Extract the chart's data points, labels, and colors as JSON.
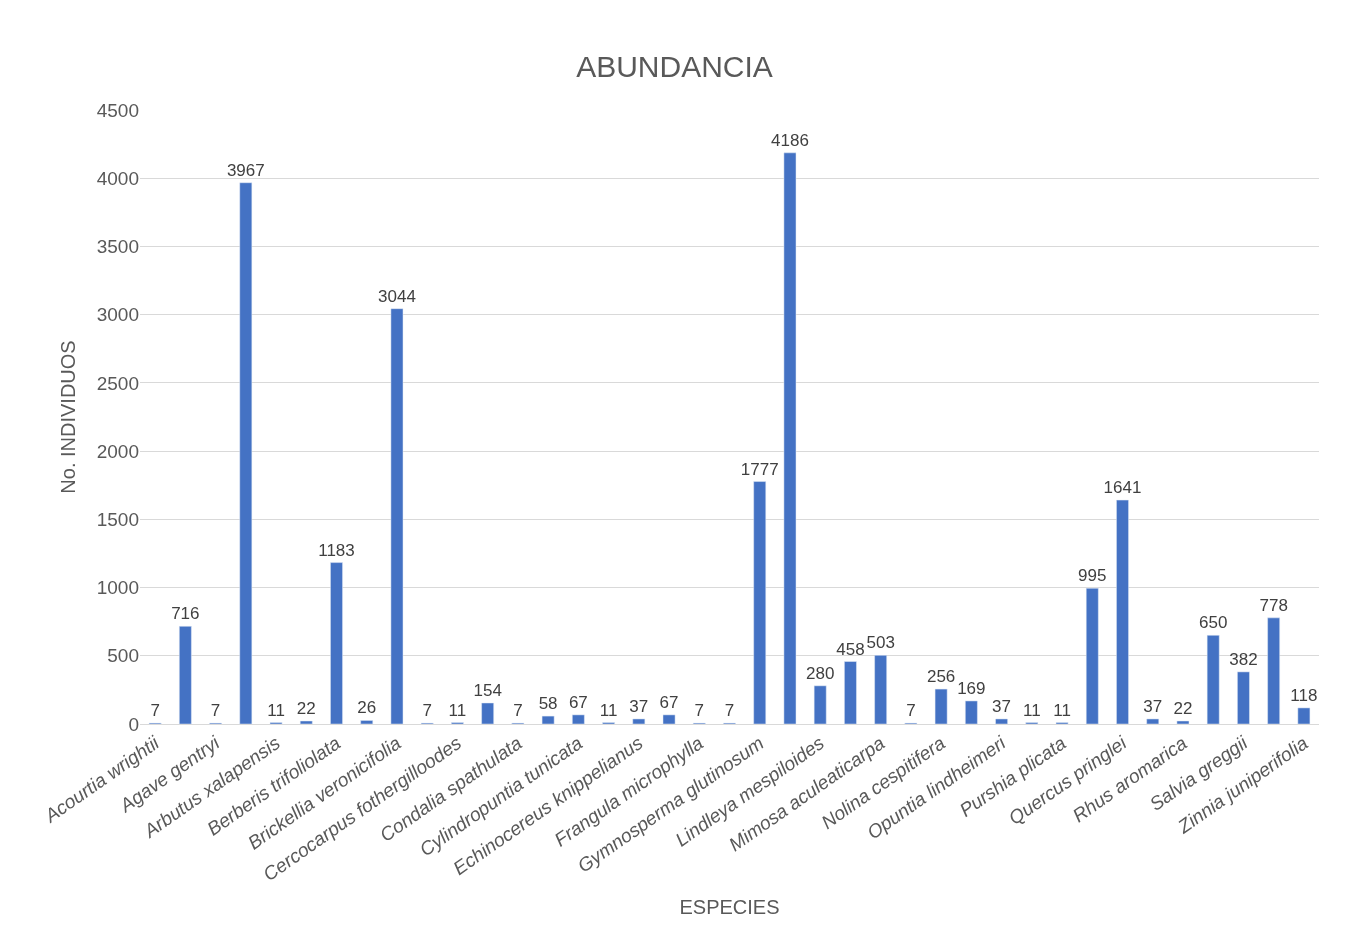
{
  "chart_data": {
    "type": "bar",
    "title": "ABUNDANCIA",
    "xlabel": "ESPECIES",
    "ylabel": "No. INDIVIDUOS",
    "categories": [
      "Acourtia wrightii",
      null,
      "Agave gentryi",
      null,
      "Arbutus xalapensis",
      null,
      "Berberis trifoliolata",
      null,
      "Brickellia veronicifolia",
      null,
      "Cercocarpus fothergilloodes",
      null,
      "Condalia spathulata",
      null,
      "Cylindropuntia tunicata",
      null,
      "Echinocereus knippelianus",
      null,
      "Frangula microphylla",
      null,
      "Gymnosperma glutinosum",
      null,
      "Lindleya mespiloides",
      null,
      "Mimosa aculeaticarpa",
      null,
      "Nolina cespitifera",
      null,
      "Opuntia lindheimeri",
      null,
      "Purshia plicata",
      null,
      "Quercus pringlei",
      null,
      "Rhus aromarica",
      null,
      "Salvia greggii",
      null,
      "Zinnia juniperifolia"
    ],
    "values": [
      7,
      716,
      7,
      3967,
      11,
      22,
      1183,
      26,
      3044,
      7,
      11,
      154,
      7,
      58,
      67,
      11,
      37,
      67,
      7,
      7,
      1777,
      4186,
      280,
      458,
      503,
      7,
      256,
      169,
      37,
      11,
      11,
      995,
      1641,
      37,
      22,
      650,
      382,
      778,
      118
    ],
    "color": "#4472c4",
    "ylim": [
      0,
      4500
    ],
    "yticks": [
      0,
      500,
      1000,
      1500,
      2000,
      2500,
      3000,
      3500,
      4000,
      4500
    ],
    "grid": "y",
    "data_labels": true
  }
}
